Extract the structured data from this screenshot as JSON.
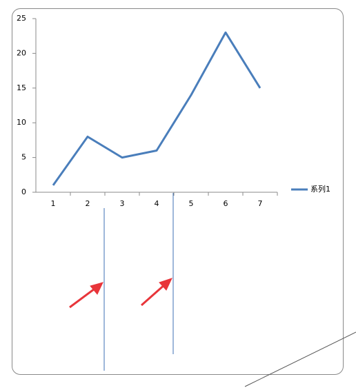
{
  "chart_data": {
    "type": "line",
    "categories": [
      "1",
      "2",
      "3",
      "4",
      "5",
      "6",
      "7"
    ],
    "series": [
      {
        "name": "系列1",
        "color": "#4a7ebb",
        "values": [
          1,
          8,
          5,
          6,
          14,
          23,
          15
        ]
      }
    ],
    "ylim": [
      0,
      25
    ],
    "yticks": [
      0,
      5,
      10,
      15,
      20,
      25
    ],
    "grid": false,
    "legend": "right"
  }
}
